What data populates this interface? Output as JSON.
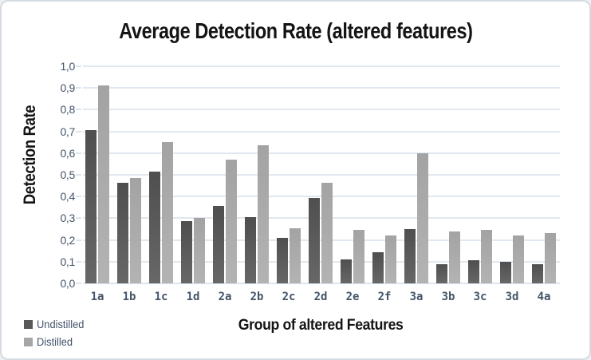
{
  "chart_data": {
    "type": "bar",
    "title": "Average Detection Rate (altered features)",
    "xlabel": "Group of altered Features",
    "ylabel": "Detection Rate",
    "categories": [
      "1a",
      "1b",
      "1c",
      "1d",
      "2a",
      "2b",
      "2c",
      "2d",
      "2e",
      "2f",
      "3a",
      "3b",
      "3c",
      "3d",
      "4a"
    ],
    "series": [
      {
        "name": "Undistilled",
        "color_top": "#4f4f4f",
        "color_bottom": "#676767",
        "legend_color": "#595959",
        "values": [
          0.705,
          0.465,
          0.515,
          0.285,
          0.355,
          0.305,
          0.21,
          0.395,
          0.11,
          0.145,
          0.25,
          0.09,
          0.105,
          0.1,
          0.09
        ]
      },
      {
        "name": "Distilled",
        "color_top": "#a3a3a3",
        "color_bottom": "#b3b3b3",
        "legend_color": "#a6a6a6",
        "values": [
          0.91,
          0.485,
          0.65,
          0.3,
          0.57,
          0.635,
          0.255,
          0.465,
          0.245,
          0.22,
          0.6,
          0.24,
          0.245,
          0.22,
          0.23
        ]
      }
    ],
    "ylim": [
      0,
      1
    ],
    "ytick_step": 0.1,
    "ytick_labels": [
      "0,0",
      "0,1",
      "0,2",
      "0,3",
      "0,4",
      "0,5",
      "0,6",
      "0,7",
      "0,8",
      "0,9",
      "1,0"
    ],
    "decimal_separator": ",",
    "grid": true,
    "legend_position": "bottom-left",
    "colors": {
      "axis_text": "#44546a",
      "gridline": "#e2e8f0",
      "title_text": "#141414",
      "card_border": "#d5dbe2",
      "background": "#ffffff"
    }
  }
}
